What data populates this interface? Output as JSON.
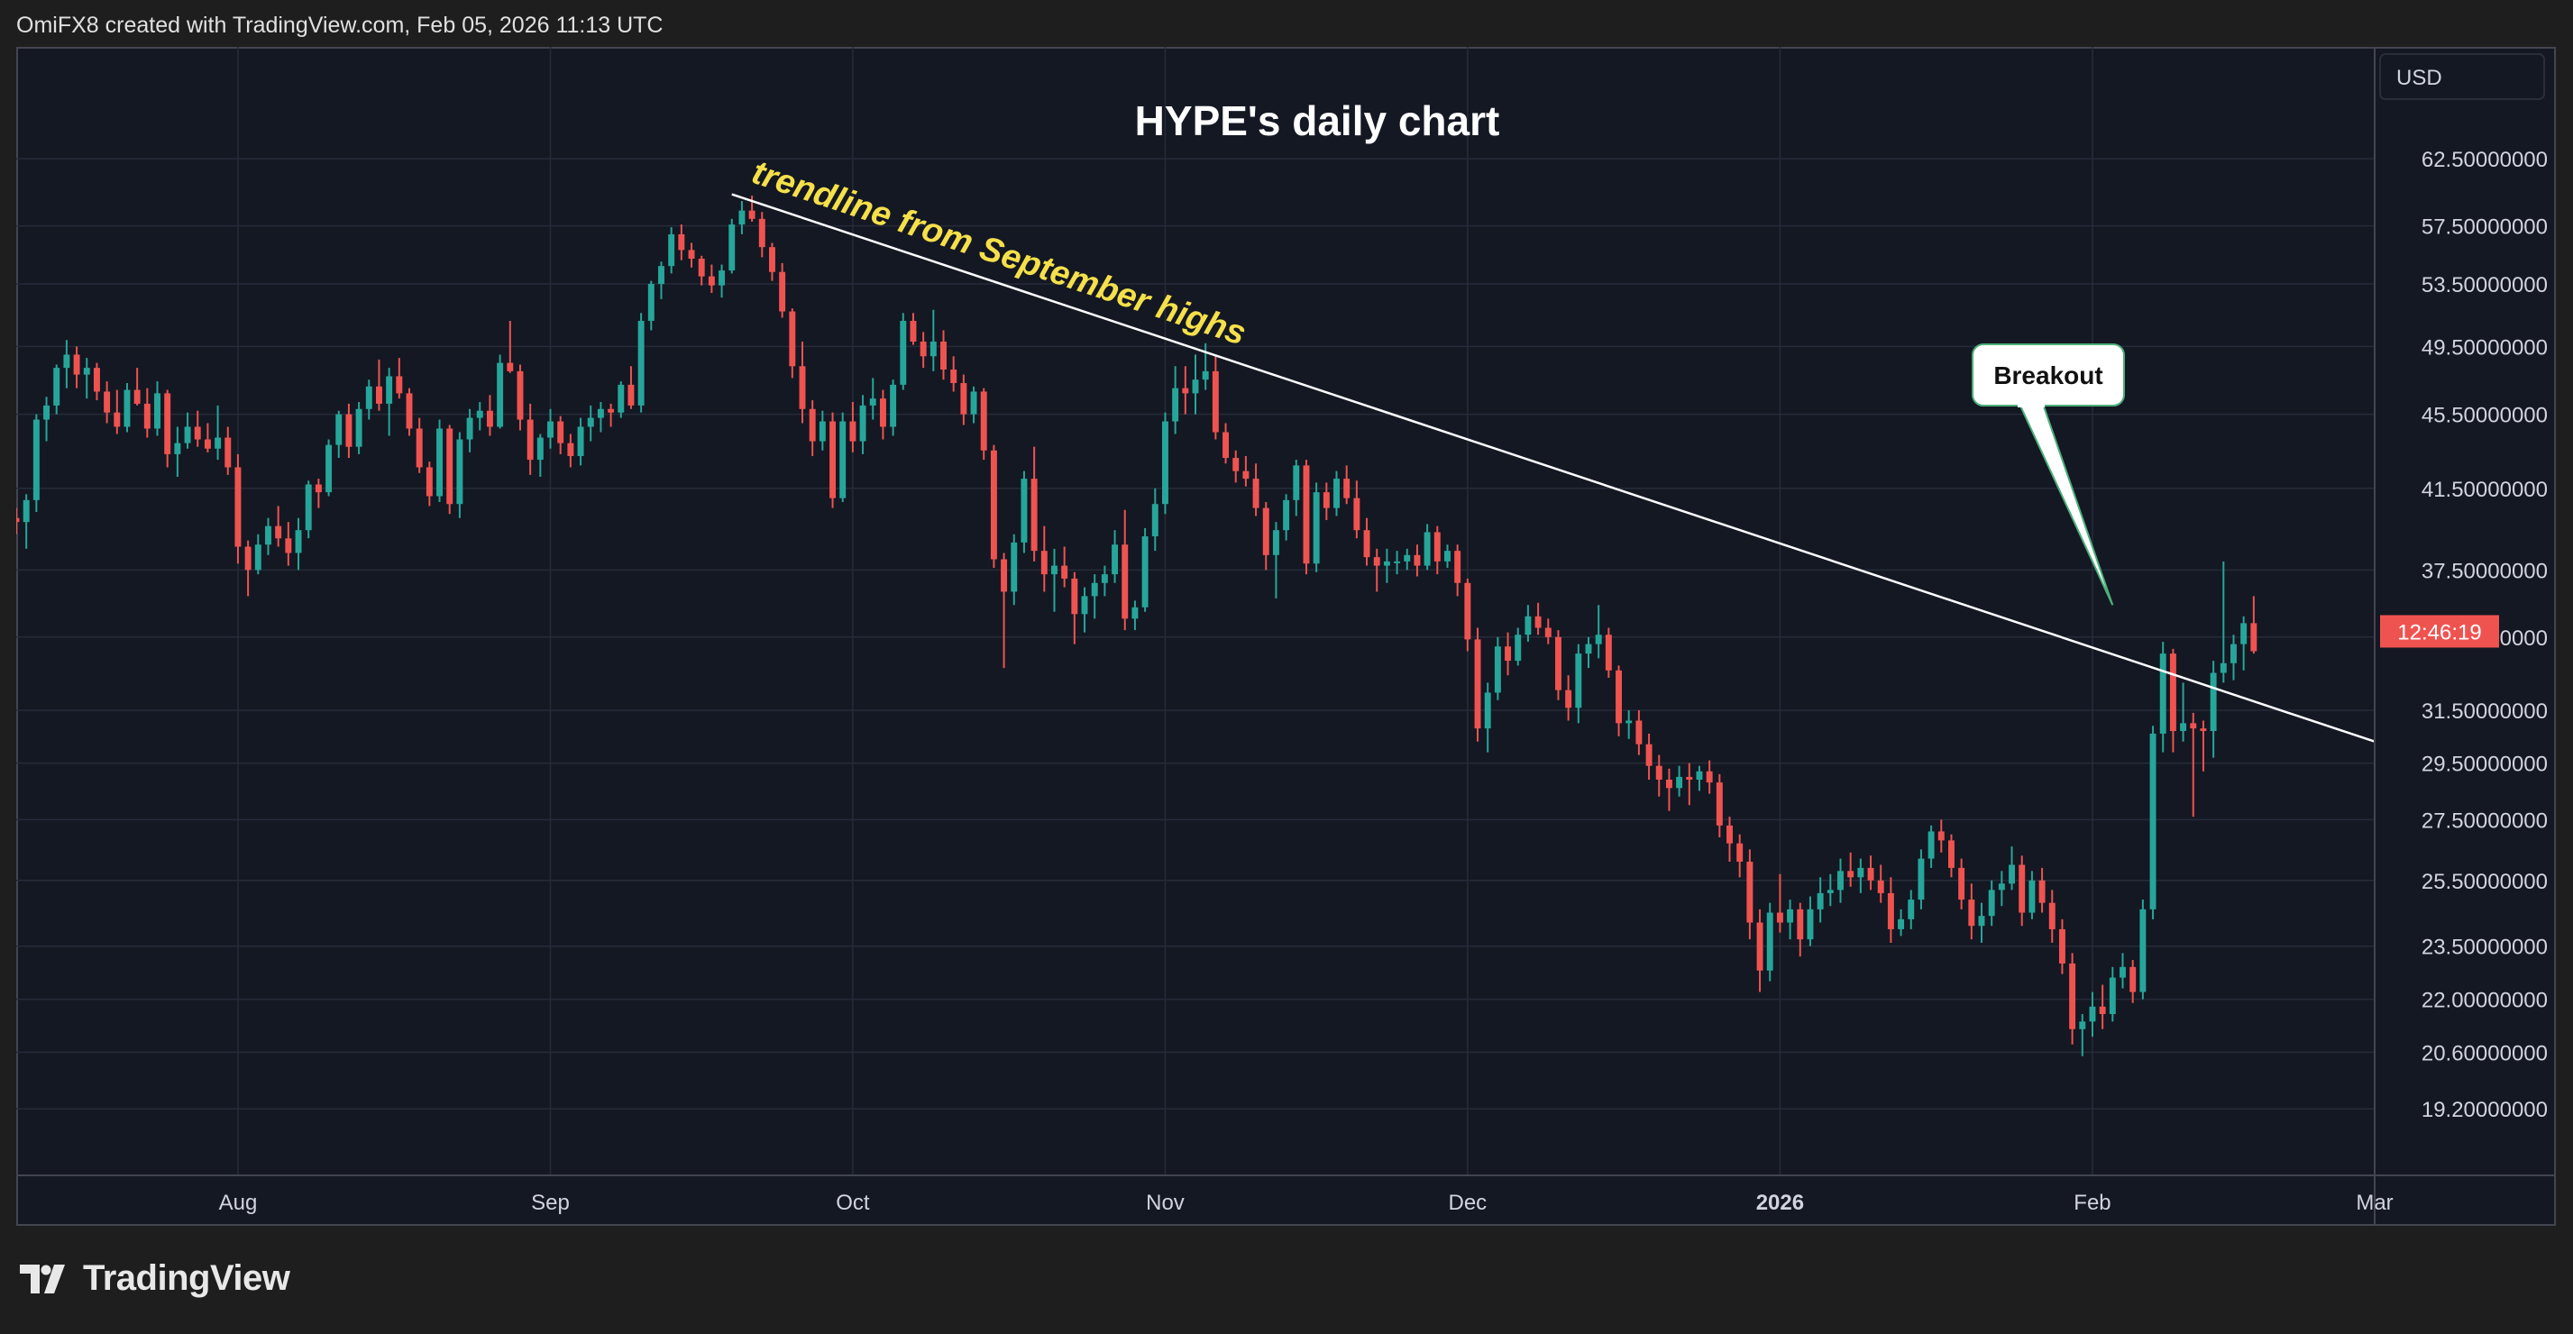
{
  "header": {
    "text": "OmiFX8 created with TradingView.com, Feb 05, 2026 11:13 UTC"
  },
  "footer": {
    "brand": "TradingView"
  },
  "colors": {
    "up": "#26a69a",
    "down": "#ef5350",
    "background": "#141823",
    "grid": "#262b3a",
    "trendline": "#ffffff",
    "annotation_text": "#f5e04a",
    "price_tag": "#ef5350"
  },
  "chart_data": {
    "type": "candlestick",
    "title": "HYPE's daily chart",
    "currency": "USD",
    "y_scale": "log",
    "ylim": [
      18.2,
      67
    ],
    "y_ticks": [
      {
        "value": 62.5,
        "label": "62.50000000"
      },
      {
        "value": 57.5,
        "label": "57.50000000"
      },
      {
        "value": 53.5,
        "label": "53.50000000"
      },
      {
        "value": 49.5,
        "label": "49.50000000"
      },
      {
        "value": 45.5,
        "label": "45.50000000"
      },
      {
        "value": 41.5,
        "label": "41.50000000"
      },
      {
        "value": 37.5,
        "label": "37.50000000"
      },
      {
        "value": 34.5,
        "label": "34.50000000"
      },
      {
        "value": 31.5,
        "label": "31.50000000"
      },
      {
        "value": 29.5,
        "label": "29.50000000"
      },
      {
        "value": 27.5,
        "label": "27.50000000"
      },
      {
        "value": 25.5,
        "label": "25.50000000"
      },
      {
        "value": 23.5,
        "label": "23.50000000"
      },
      {
        "value": 22.0,
        "label": "22.00000000"
      },
      {
        "value": 20.6,
        "label": "20.60000000"
      },
      {
        "value": 19.2,
        "label": "19.20000000"
      }
    ],
    "x_range": [
      "2025-07-10",
      "2026-03-01"
    ],
    "x_ticks": [
      {
        "date": "2025-08-01",
        "label": "Aug",
        "bold": false
      },
      {
        "date": "2025-09-01",
        "label": "Sep",
        "bold": false
      },
      {
        "date": "2025-10-01",
        "label": "Oct",
        "bold": false
      },
      {
        "date": "2025-11-01",
        "label": "Nov",
        "bold": false
      },
      {
        "date": "2025-12-01",
        "label": "Dec",
        "bold": false
      },
      {
        "date": "2026-01-01",
        "label": "2026",
        "bold": true
      },
      {
        "date": "2026-02-01",
        "label": "Feb",
        "bold": false
      },
      {
        "date": "2026-03-01",
        "label": "Mar",
        "bold": false
      }
    ],
    "start_date": "2025-07-10",
    "candles": [
      [
        40.0,
        40.5,
        39.2,
        39.8
      ],
      [
        39.8,
        41.2,
        38.5,
        40.9
      ],
      [
        40.9,
        45.5,
        40.3,
        45.2
      ],
      [
        45.2,
        46.5,
        44.0,
        46.0
      ],
      [
        46.0,
        48.4,
        45.5,
        48.2
      ],
      [
        48.2,
        49.9,
        47.0,
        49.0
      ],
      [
        49.0,
        49.5,
        47.0,
        47.8
      ],
      [
        47.8,
        48.8,
        46.4,
        48.2
      ],
      [
        48.2,
        48.5,
        46.3,
        46.8
      ],
      [
        46.8,
        47.4,
        45.0,
        45.6
      ],
      [
        45.6,
        46.9,
        44.4,
        44.8
      ],
      [
        44.8,
        47.3,
        44.5,
        46.9
      ],
      [
        46.9,
        48.2,
        46.0,
        46.1
      ],
      [
        46.1,
        47.0,
        44.2,
        44.7
      ],
      [
        44.7,
        47.4,
        44.3,
        46.7
      ],
      [
        46.7,
        46.9,
        42.6,
        43.3
      ],
      [
        43.3,
        44.8,
        42.1,
        43.9
      ],
      [
        43.9,
        45.6,
        43.6,
        44.8
      ],
      [
        44.8,
        45.7,
        43.7,
        44.1
      ],
      [
        44.1,
        45.0,
        43.4,
        43.6
      ],
      [
        43.6,
        46.0,
        43.0,
        44.2
      ],
      [
        44.2,
        44.8,
        42.2,
        42.6
      ],
      [
        42.6,
        43.3,
        37.8,
        38.6
      ],
      [
        38.6,
        38.9,
        36.3,
        37.5
      ],
      [
        37.5,
        39.2,
        37.3,
        38.7
      ],
      [
        38.7,
        40.0,
        38.2,
        39.6
      ],
      [
        39.6,
        40.6,
        38.6,
        39.0
      ],
      [
        39.0,
        39.8,
        37.7,
        38.3
      ],
      [
        38.3,
        40.0,
        37.5,
        39.4
      ],
      [
        39.4,
        41.9,
        39.0,
        41.7
      ],
      [
        41.7,
        42.0,
        40.5,
        41.3
      ],
      [
        41.3,
        44.1,
        41.1,
        43.8
      ],
      [
        43.8,
        45.7,
        43.1,
        45.5
      ],
      [
        45.5,
        46.1,
        43.1,
        43.7
      ],
      [
        43.7,
        46.2,
        43.3,
        45.8
      ],
      [
        45.8,
        47.5,
        45.2,
        47.1
      ],
      [
        47.1,
        48.7,
        45.7,
        46.1
      ],
      [
        46.1,
        48.2,
        44.3,
        47.7
      ],
      [
        47.7,
        48.8,
        46.4,
        46.7
      ],
      [
        46.7,
        47.0,
        44.3,
        44.7
      ],
      [
        44.7,
        45.3,
        42.3,
        42.6
      ],
      [
        42.6,
        42.9,
        40.6,
        41.1
      ],
      [
        41.1,
        45.2,
        40.8,
        44.7
      ],
      [
        44.7,
        44.9,
        40.2,
        40.7
      ],
      [
        40.7,
        44.5,
        40.0,
        44.1
      ],
      [
        44.1,
        45.8,
        43.4,
        45.3
      ],
      [
        45.3,
        46.2,
        44.6,
        45.7
      ],
      [
        45.7,
        46.6,
        44.3,
        44.8
      ],
      [
        44.8,
        49.0,
        44.7,
        48.5
      ],
      [
        48.5,
        51.1,
        47.9,
        48.0
      ],
      [
        48.0,
        48.4,
        44.6,
        45.2
      ],
      [
        45.2,
        46.1,
        42.2,
        43.0
      ],
      [
        43.0,
        44.4,
        42.1,
        44.2
      ],
      [
        44.2,
        45.8,
        43.6,
        45.1
      ],
      [
        45.1,
        45.4,
        43.3,
        43.9
      ],
      [
        43.9,
        44.4,
        42.6,
        43.2
      ],
      [
        43.2,
        45.3,
        42.7,
        44.8
      ],
      [
        44.8,
        46.0,
        44.0,
        45.3
      ],
      [
        45.3,
        46.2,
        44.5,
        45.8
      ],
      [
        45.8,
        46.1,
        44.8,
        45.6
      ],
      [
        45.6,
        47.4,
        45.3,
        47.2
      ],
      [
        47.2,
        48.3,
        45.8,
        46.0
      ],
      [
        46.0,
        51.6,
        45.6,
        51.1
      ],
      [
        51.1,
        53.7,
        50.5,
        53.5
      ],
      [
        53.5,
        55.0,
        52.5,
        54.7
      ],
      [
        54.7,
        57.4,
        54.2,
        56.9
      ],
      [
        56.9,
        57.6,
        55.1,
        55.8
      ],
      [
        55.8,
        56.3,
        54.6,
        55.2
      ],
      [
        55.2,
        55.4,
        53.4,
        54.0
      ],
      [
        54.0,
        54.8,
        52.9,
        53.4
      ],
      [
        53.4,
        54.8,
        52.6,
        54.4
      ],
      [
        54.4,
        58.0,
        54.2,
        57.6
      ],
      [
        57.6,
        59.3,
        56.9,
        58.6
      ],
      [
        58.6,
        59.7,
        57.8,
        58.0
      ],
      [
        58.0,
        58.5,
        55.3,
        56.0
      ],
      [
        56.0,
        56.3,
        53.7,
        54.3
      ],
      [
        54.3,
        54.9,
        51.3,
        51.7
      ],
      [
        51.7,
        51.9,
        47.6,
        48.3
      ],
      [
        48.3,
        49.8,
        45.0,
        45.8
      ],
      [
        45.8,
        46.3,
        43.2,
        44.0
      ],
      [
        44.0,
        45.7,
        43.5,
        45.1
      ],
      [
        45.1,
        45.6,
        40.5,
        41.0
      ],
      [
        41.0,
        45.6,
        40.8,
        45.1
      ],
      [
        45.1,
        46.2,
        43.4,
        44.0
      ],
      [
        44.0,
        46.6,
        43.3,
        46.0
      ],
      [
        46.0,
        47.6,
        45.2,
        46.4
      ],
      [
        46.4,
        46.9,
        44.1,
        44.8
      ],
      [
        44.8,
        47.5,
        44.3,
        47.2
      ],
      [
        47.2,
        51.6,
        46.9,
        51.1
      ],
      [
        51.1,
        51.6,
        49.6,
        49.8
      ],
      [
        49.8,
        50.4,
        48.2,
        48.9
      ],
      [
        48.9,
        51.8,
        48.0,
        49.8
      ],
      [
        49.8,
        50.5,
        47.5,
        48.1
      ],
      [
        48.1,
        48.9,
        46.8,
        47.3
      ],
      [
        47.3,
        47.8,
        44.9,
        45.5
      ],
      [
        45.5,
        47.1,
        45.0,
        46.8
      ],
      [
        46.8,
        47.0,
        43.0,
        43.5
      ],
      [
        43.5,
        43.8,
        37.6,
        38.0
      ],
      [
        38.0,
        38.3,
        33.2,
        36.5
      ],
      [
        36.5,
        39.2,
        35.9,
        38.8
      ],
      [
        38.8,
        42.4,
        38.3,
        42.0
      ],
      [
        42.0,
        43.7,
        37.9,
        38.4
      ],
      [
        38.4,
        39.6,
        36.5,
        37.3
      ],
      [
        37.3,
        38.5,
        35.6,
        37.7
      ],
      [
        37.7,
        38.6,
        36.7,
        37.1
      ],
      [
        37.1,
        37.4,
        34.2,
        35.5
      ],
      [
        35.5,
        36.7,
        34.7,
        36.3
      ],
      [
        36.3,
        37.3,
        35.3,
        36.9
      ],
      [
        36.9,
        37.7,
        36.3,
        37.3
      ],
      [
        37.3,
        39.4,
        36.9,
        38.7
      ],
      [
        38.7,
        40.4,
        34.8,
        35.3
      ],
      [
        35.3,
        36.1,
        34.8,
        35.8
      ],
      [
        35.8,
        39.5,
        35.6,
        39.1
      ],
      [
        39.1,
        41.5,
        38.4,
        40.7
      ],
      [
        40.7,
        45.6,
        40.2,
        45.1
      ],
      [
        45.1,
        48.3,
        44.4,
        47.0
      ],
      [
        47.0,
        48.3,
        45.5,
        46.7
      ],
      [
        46.7,
        49.0,
        45.5,
        47.5
      ],
      [
        47.5,
        49.7,
        46.9,
        48.0
      ],
      [
        48.0,
        49.0,
        44.1,
        44.5
      ],
      [
        44.5,
        45.0,
        42.8,
        43.1
      ],
      [
        43.1,
        43.5,
        41.8,
        42.4
      ],
      [
        42.4,
        43.2,
        41.6,
        42.0
      ],
      [
        42.0,
        42.8,
        40.1,
        40.5
      ],
      [
        40.5,
        40.8,
        37.5,
        38.2
      ],
      [
        38.2,
        39.8,
        36.2,
        39.4
      ],
      [
        39.4,
        41.2,
        38.9,
        40.9
      ],
      [
        40.9,
        43.0,
        40.1,
        42.7
      ],
      [
        42.7,
        43.0,
        37.3,
        37.8
      ],
      [
        37.8,
        41.8,
        37.4,
        41.3
      ],
      [
        41.3,
        41.8,
        39.9,
        40.5
      ],
      [
        40.5,
        42.4,
        40.1,
        42.0
      ],
      [
        42.0,
        42.7,
        40.7,
        41.0
      ],
      [
        41.0,
        41.9,
        39.0,
        39.4
      ],
      [
        39.4,
        40.0,
        37.7,
        38.1
      ],
      [
        38.1,
        38.5,
        36.5,
        37.7
      ],
      [
        37.7,
        38.5,
        36.9,
        37.9
      ],
      [
        37.9,
        38.4,
        37.3,
        37.9
      ],
      [
        37.9,
        38.5,
        37.5,
        38.2
      ],
      [
        38.2,
        38.7,
        37.2,
        37.7
      ],
      [
        37.7,
        39.7,
        37.5,
        39.3
      ],
      [
        39.3,
        39.6,
        37.3,
        37.9
      ],
      [
        37.9,
        38.7,
        37.6,
        38.4
      ],
      [
        38.4,
        38.7,
        36.3,
        36.9
      ],
      [
        36.9,
        37.1,
        33.9,
        34.4
      ],
      [
        34.4,
        34.9,
        30.3,
        30.8
      ],
      [
        30.8,
        32.6,
        29.9,
        32.2
      ],
      [
        32.2,
        34.5,
        31.9,
        34.1
      ],
      [
        34.1,
        34.7,
        32.9,
        33.5
      ],
      [
        33.5,
        34.9,
        33.3,
        34.6
      ],
      [
        34.6,
        35.9,
        34.3,
        35.4
      ],
      [
        35.4,
        36.0,
        34.6,
        34.9
      ],
      [
        34.9,
        35.3,
        34.2,
        34.5
      ],
      [
        34.5,
        34.8,
        31.9,
        32.3
      ],
      [
        32.3,
        32.9,
        31.1,
        31.6
      ],
      [
        31.6,
        34.2,
        31.0,
        33.8
      ],
      [
        33.8,
        34.5,
        33.2,
        34.2
      ],
      [
        34.2,
        35.9,
        33.6,
        34.6
      ],
      [
        34.6,
        34.9,
        32.8,
        33.1
      ],
      [
        33.1,
        33.3,
        30.5,
        31.0
      ],
      [
        31.0,
        31.5,
        30.4,
        31.1
      ],
      [
        31.1,
        31.5,
        29.8,
        30.2
      ],
      [
        30.2,
        30.6,
        28.9,
        29.4
      ],
      [
        29.4,
        29.8,
        28.3,
        28.9
      ],
      [
        28.9,
        29.3,
        27.8,
        28.6
      ],
      [
        28.6,
        29.4,
        28.3,
        29.0
      ],
      [
        29.0,
        29.5,
        28.0,
        28.9
      ],
      [
        28.9,
        29.4,
        28.5,
        29.2
      ],
      [
        29.2,
        29.6,
        28.4,
        28.8
      ],
      [
        28.8,
        29.1,
        26.9,
        27.3
      ],
      [
        27.3,
        27.6,
        26.1,
        26.7
      ],
      [
        26.7,
        27.0,
        25.6,
        26.1
      ],
      [
        26.1,
        26.5,
        23.7,
        24.2
      ],
      [
        24.2,
        24.6,
        22.2,
        22.8
      ],
      [
        22.8,
        24.8,
        22.5,
        24.5
      ],
      [
        24.5,
        25.7,
        23.9,
        24.2
      ],
      [
        24.2,
        24.9,
        23.7,
        24.6
      ],
      [
        24.6,
        24.8,
        23.2,
        23.7
      ],
      [
        23.7,
        25.0,
        23.5,
        24.6
      ],
      [
        24.6,
        25.6,
        24.2,
        25.1
      ],
      [
        25.1,
        25.7,
        24.7,
        25.2
      ],
      [
        25.2,
        26.2,
        24.8,
        25.8
      ],
      [
        25.8,
        26.4,
        25.3,
        25.6
      ],
      [
        25.6,
        26.2,
        25.1,
        25.9
      ],
      [
        25.9,
        26.3,
        25.2,
        25.5
      ],
      [
        25.5,
        26.0,
        24.8,
        25.1
      ],
      [
        25.1,
        25.6,
        23.6,
        24.0
      ],
      [
        24.0,
        24.6,
        23.8,
        24.3
      ],
      [
        24.3,
        25.2,
        24.0,
        24.9
      ],
      [
        24.9,
        26.5,
        24.6,
        26.2
      ],
      [
        26.2,
        27.3,
        25.9,
        27.1
      ],
      [
        27.1,
        27.5,
        26.4,
        26.8
      ],
      [
        26.8,
        27.0,
        25.6,
        25.9
      ],
      [
        25.9,
        26.2,
        24.6,
        24.9
      ],
      [
        24.9,
        25.4,
        23.7,
        24.1
      ],
      [
        24.1,
        24.8,
        23.6,
        24.4
      ],
      [
        24.4,
        25.5,
        24.1,
        25.2
      ],
      [
        25.2,
        25.8,
        24.7,
        25.4
      ],
      [
        25.4,
        26.6,
        25.2,
        26.0
      ],
      [
        26.0,
        26.3,
        24.1,
        24.5
      ],
      [
        24.5,
        25.8,
        24.3,
        25.5
      ],
      [
        25.5,
        25.9,
        24.5,
        24.8
      ],
      [
        24.8,
        25.2,
        23.6,
        24.0
      ],
      [
        24.0,
        24.3,
        22.7,
        23.0
      ],
      [
        23.0,
        23.3,
        20.8,
        21.2
      ],
      [
        21.2,
        21.6,
        20.5,
        21.4
      ],
      [
        21.4,
        22.2,
        21.0,
        21.8
      ],
      [
        21.8,
        22.4,
        21.2,
        21.6
      ],
      [
        21.6,
        22.9,
        21.4,
        22.6
      ],
      [
        22.6,
        23.3,
        22.3,
        22.9
      ],
      [
        22.9,
        23.1,
        21.9,
        22.2
      ],
      [
        22.2,
        24.9,
        22.0,
        24.6
      ],
      [
        24.6,
        30.9,
        24.3,
        30.6
      ],
      [
        30.6,
        34.3,
        29.9,
        33.8
      ],
      [
        33.8,
        34.0,
        29.9,
        30.7
      ],
      [
        30.7,
        32.6,
        30.3,
        31.0
      ],
      [
        31.0,
        31.4,
        27.6,
        30.8
      ],
      [
        30.8,
        31.1,
        29.2,
        30.7
      ],
      [
        30.7,
        33.5,
        29.7,
        33.0
      ],
      [
        33.0,
        37.9,
        32.6,
        33.4
      ],
      [
        33.4,
        34.6,
        32.7,
        34.2
      ],
      [
        34.2,
        35.4,
        33.1,
        35.1
      ],
      [
        35.1,
        36.3,
        33.8,
        33.9
      ]
    ],
    "annotations": {
      "trendline_label": "trendline from September highs",
      "breakout_label": "Breakout",
      "price_tag": "12:46:19",
      "trendline": {
        "start": {
          "date": "2025-09-19",
          "price": 59.8
        },
        "end": {
          "date": "2026-03-01",
          "price": 30.3
        }
      },
      "breakout_point": {
        "date": "2026-02-03",
        "price": 35.9
      }
    }
  }
}
